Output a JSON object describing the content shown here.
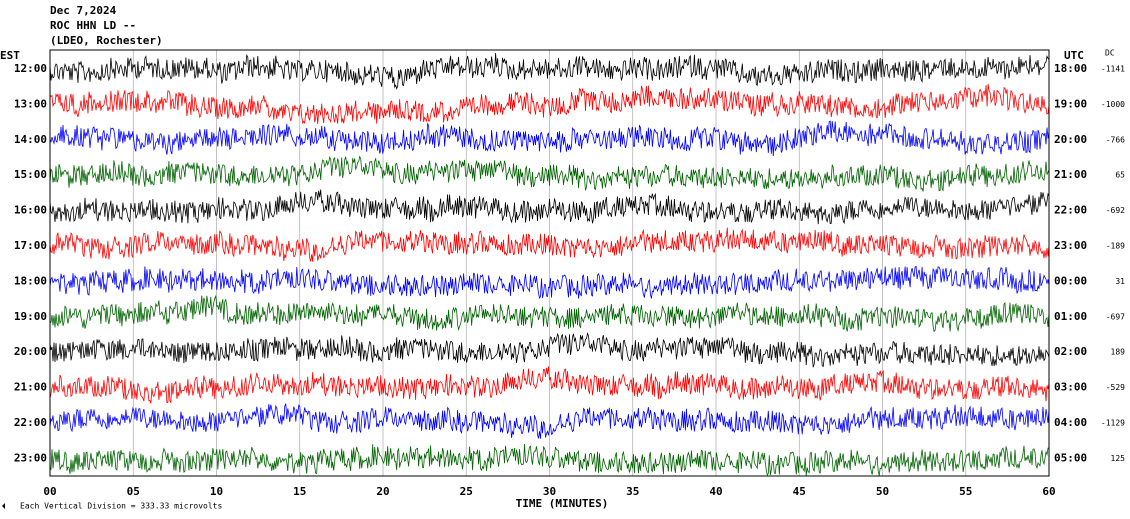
{
  "header": {
    "date": "Dec 7,2024",
    "station": "ROC HHN LD --",
    "network": "(LDEO, Rochester)"
  },
  "left_axis": {
    "title": "EST",
    "labels": [
      "12:00",
      "13:00",
      "14:00",
      "15:00",
      "16:00",
      "17:00",
      "18:00",
      "19:00",
      "20:00",
      "21:00",
      "22:00",
      "23:00"
    ]
  },
  "right_axis": {
    "title": "UTC",
    "labels": [
      "18:00",
      "19:00",
      "20:00",
      "21:00",
      "22:00",
      "23:00",
      "00:00",
      "01:00",
      "02:00",
      "03:00",
      "04:00",
      "05:00"
    ]
  },
  "dc": {
    "title": "DC",
    "values": [
      -1141,
      -1000,
      -766,
      65,
      -692,
      -189,
      31,
      -697,
      189,
      -529,
      -1129,
      125
    ]
  },
  "x_axis": {
    "title": "TIME (MINUTES)",
    "ticks": [
      "00",
      "05",
      "10",
      "15",
      "20",
      "25",
      "30",
      "35",
      "40",
      "45",
      "50",
      "55",
      "60"
    ]
  },
  "scale_note": "Each Vertical Division =  333.33 microvolts",
  "trace_colors": [
    "#000000",
    "#ff0000",
    "#0000ff",
    "#006400"
  ]
}
